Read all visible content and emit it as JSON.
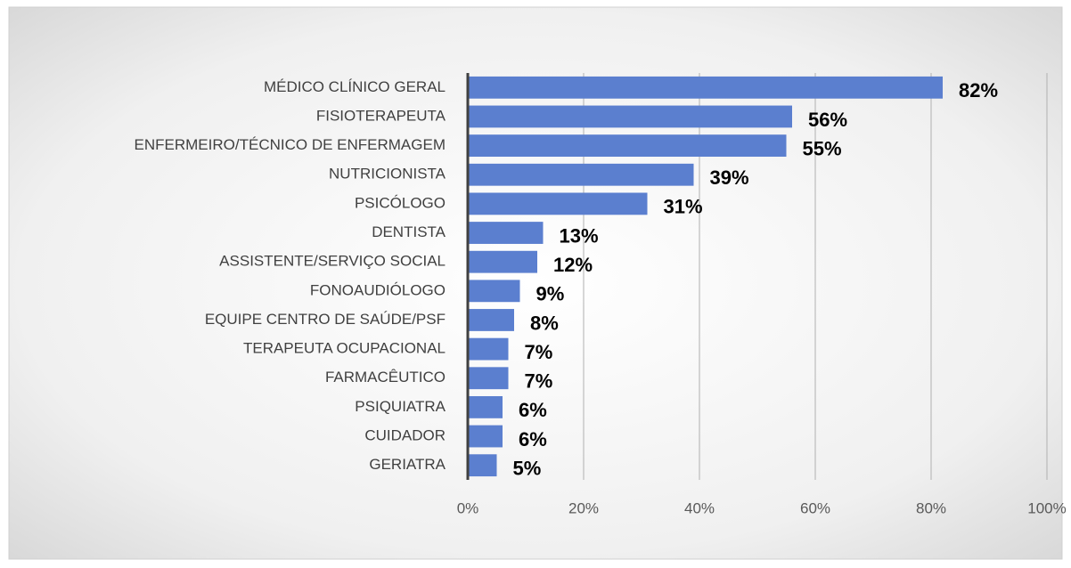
{
  "chart_data": {
    "type": "barh",
    "categories": [
      "MÉDICO CLÍNICO GERAL",
      "FISIOTERAPEUTA",
      "ENFERMEIRO/TÉCNICO DE ENFERMAGEM",
      "NUTRICIONISTA",
      "PSICÓLOGO",
      "DENTISTA",
      "ASSISTENTE/SERVIÇO SOCIAL",
      "FONOAUDIÓLOGO",
      "EQUIPE CENTRO DE SAÚDE/PSF",
      "TERAPEUTA OCUPACIONAL",
      "FARMACÊUTICO",
      "PSIQUIATRA",
      "CUIDADOR",
      "GERIATRA"
    ],
    "values": [
      82,
      56,
      55,
      39,
      31,
      13,
      12,
      9,
      8,
      7,
      7,
      6,
      6,
      5
    ],
    "value_labels": [
      "82%",
      "56%",
      "55%",
      "39%",
      "31%",
      "13%",
      "12%",
      "9%",
      "8%",
      "7%",
      "7%",
      "6%",
      "6%",
      "5%"
    ],
    "color": "#5b7fcf",
    "xlim": [
      0,
      100
    ],
    "xticks": [
      {
        "value": 0,
        "label": "0%"
      },
      {
        "value": 20,
        "label": "20%"
      },
      {
        "value": 40,
        "label": "40%"
      },
      {
        "value": 60,
        "label": "60%"
      },
      {
        "value": 80,
        "label": "80%"
      },
      {
        "value": 100,
        "label": "100%"
      }
    ],
    "grid": true
  }
}
